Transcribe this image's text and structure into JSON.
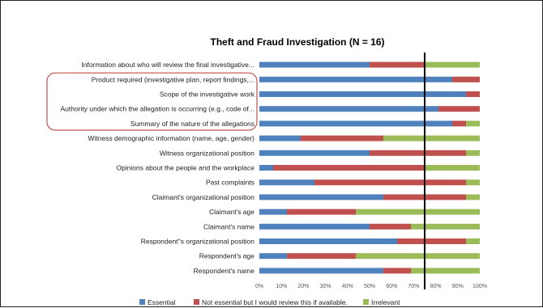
{
  "chart_data": {
    "type": "bar",
    "orientation": "horizontal",
    "stacked": true,
    "normalized_percent": true,
    "title": "Theft and Fraud Investigation (N = 16)",
    "categories": [
      "Information about who will review the final investigative...",
      "Product required (investigative plan, report findings,...",
      "Scope of the investigative work",
      "Authority under which the allegation is occurring (e.g., code of...",
      "Summary of the nature of the allegations",
      "Witness demographic information (name, age, gender)",
      "Witness organizational position",
      "Opinions about the people and the workplace",
      "Past complaints",
      "Claimant's organizational position",
      "Claimant's age",
      "Claimant's name",
      "Respondent''s organizational position",
      "Respondent's age",
      "Respondent's name"
    ],
    "series": [
      {
        "name": "Essential",
        "color": "#4f81bd",
        "values": [
          50,
          87.5,
          93.75,
          81.25,
          87.5,
          18.75,
          50,
          6.25,
          25,
          56.25,
          12.5,
          50,
          62.5,
          12.5,
          56.25
        ]
      },
      {
        "name": "Not essential but I would review this if available.",
        "color": "#c0504d",
        "values": [
          25,
          12.5,
          6.25,
          18.75,
          6.25,
          37.5,
          43.75,
          68.75,
          68.75,
          37.5,
          31.25,
          18.75,
          31.25,
          31.25,
          12.5
        ]
      },
      {
        "name": "Irrelevant",
        "color": "#9bbb59",
        "values": [
          25,
          0,
          0,
          0,
          6.25,
          43.75,
          6.25,
          25,
          6.25,
          6.25,
          56.25,
          31.25,
          6.25,
          56.25,
          31.25
        ]
      }
    ],
    "x_ticks": [
      "0%",
      "10%",
      "20%",
      "30%",
      "40%",
      "50%",
      "60%",
      "70%",
      "80%",
      "90%",
      "100%"
    ],
    "xlim": [
      0,
      100
    ],
    "reference_line_x": 75,
    "highlighted_categories": [
      1,
      4
    ],
    "highlight_color": "#c0504d",
    "legend_position": "bottom",
    "grid": false
  }
}
